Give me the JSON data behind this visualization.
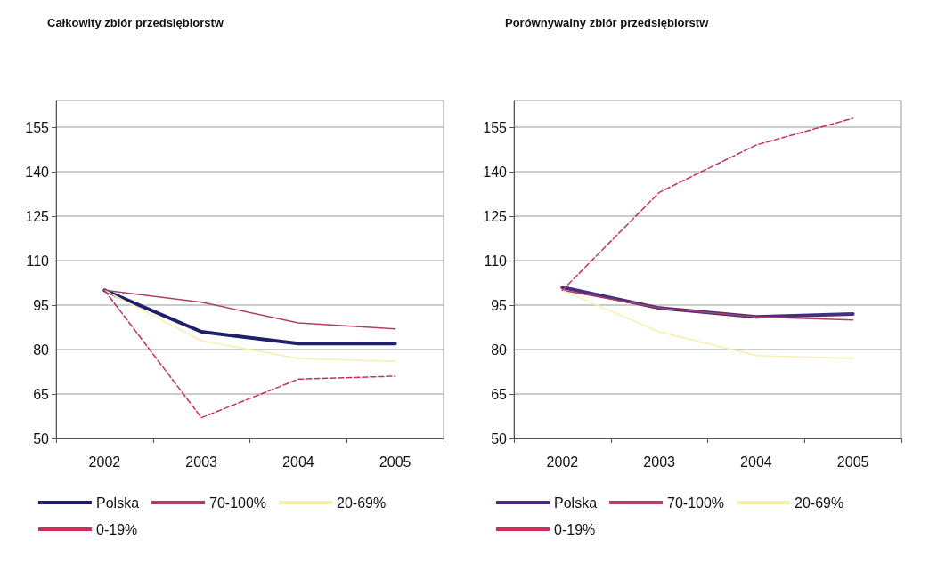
{
  "chart_data": [
    {
      "type": "line",
      "title": "Całkowity zbiór przedsiębiorstw",
      "categories": [
        "2002",
        "2003",
        "2004",
        "2005"
      ],
      "ylim": [
        50,
        164
      ],
      "yticks": [
        50,
        65,
        80,
        95,
        110,
        125,
        140,
        155
      ],
      "grid": "y",
      "legend": "bottom",
      "marker": "none",
      "series": [
        {
          "name": "Polska",
          "color": "#1f1f6e",
          "line_style": "solid",
          "values": [
            100,
            86,
            82,
            82
          ]
        },
        {
          "name": "70-100%",
          "color": "#b04060",
          "line_style": "solid",
          "values": [
            100,
            96,
            89,
            87
          ]
        },
        {
          "name": "20-69%",
          "color": "#f6f0b0",
          "line_style": "solid",
          "values": [
            100,
            83,
            77,
            76
          ]
        },
        {
          "name": "0-19%",
          "color": "#c8305a",
          "line_style": "dashed",
          "values": [
            100,
            57,
            70,
            71
          ]
        }
      ]
    },
    {
      "type": "line",
      "title": "Porównywalny zbiór przedsiębiorstw",
      "categories": [
        "2002",
        "2003",
        "2004",
        "2005"
      ],
      "ylim": [
        50,
        164
      ],
      "yticks": [
        50,
        65,
        80,
        95,
        110,
        125,
        140,
        155
      ],
      "grid": "y",
      "legend": "bottom",
      "marker": "none",
      "series": [
        {
          "name": "Polska",
          "color": "#4b2f7f",
          "line_style": "solid",
          "values": [
            101,
            94,
            91,
            92
          ]
        },
        {
          "name": "70-100%",
          "color": "#b04060",
          "line_style": "solid",
          "values": [
            100,
            94,
            91,
            90
          ]
        },
        {
          "name": "20-69%",
          "color": "#f6f0b0",
          "line_style": "solid",
          "values": [
            100,
            86,
            78,
            77
          ]
        },
        {
          "name": "0-19%",
          "color": "#c8305a",
          "line_style": "dashed",
          "values": [
            100,
            133,
            149,
            158
          ]
        }
      ]
    }
  ]
}
